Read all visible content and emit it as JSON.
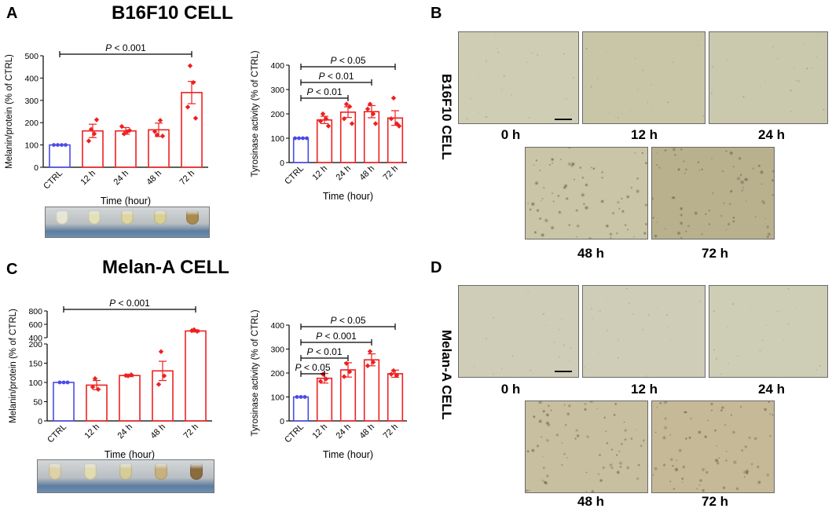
{
  "panels": {
    "A": {
      "letter": "A",
      "title": "B16F10 CELL",
      "melanin_tubes_colors": [
        "#e8e5d4",
        "#e2e0b8",
        "#ddd69f",
        "#d9d093",
        "#a88b4f"
      ]
    },
    "B": {
      "letter": "B",
      "vertical_label": "B16F10 CELL",
      "images": [
        {
          "label": "0 h",
          "tint": "#cfcdb4"
        },
        {
          "label": "12 h",
          "tint": "#c8c6a7"
        },
        {
          "label": "24 h",
          "tint": "#cac8ad"
        },
        {
          "label": "48 h",
          "tint": "#c9c5a6"
        },
        {
          "label": "72 h",
          "tint": "#b9b08e"
        }
      ]
    },
    "C": {
      "letter": "C",
      "title": "Melan-A CELL",
      "melanin_tubes_colors": [
        "#ddd2a8",
        "#e2dcb2",
        "#d6cc99",
        "#c9b17e",
        "#8a6c3f"
      ]
    },
    "D": {
      "letter": "D",
      "vertical_label": "Melan-A CELL",
      "images": [
        {
          "label": "0 h",
          "tint": "#cfcdb8"
        },
        {
          "label": "12 h",
          "tint": "#cfcdb8"
        },
        {
          "label": "24 h",
          "tint": "#cecdb6"
        },
        {
          "label": "48 h",
          "tint": "#c8bea0"
        },
        {
          "label": "72 h",
          "tint": "#c5b997"
        }
      ]
    }
  },
  "chart_data": [
    {
      "id": "A-melanin",
      "type": "bar",
      "categories": [
        "CTRL",
        "12 h",
        "24 h",
        "48 h",
        "72 h"
      ],
      "values": [
        100,
        163,
        163,
        168,
        335
      ],
      "errors": [
        0,
        30,
        15,
        30,
        50
      ],
      "points": [
        [
          100,
          100,
          100,
          100
        ],
        [
          170,
          150,
          118,
          213
        ],
        [
          150,
          160,
          183,
          165
        ],
        [
          145,
          210,
          160,
          140
        ],
        [
          455,
          380,
          270,
          220
        ]
      ],
      "bar_colors": [
        "#4a4ae6",
        "#ee2020",
        "#ee2020",
        "#ee2020",
        "#ee2020"
      ],
      "xlabel": "Time (hour)",
      "ylabel": "Melanin/protein (% of CTRL)",
      "yticks": [
        0,
        100,
        200,
        300,
        400,
        500
      ],
      "ylim": [
        0,
        500
      ],
      "significance": [
        {
          "text": "P < 0.001",
          "from": 0,
          "to": 4
        }
      ]
    },
    {
      "id": "A-tyrosinase",
      "type": "bar",
      "categories": [
        "CTRL",
        "12 h",
        "24 h",
        "48 h",
        "72 h"
      ],
      "values": [
        100,
        175,
        207,
        209,
        183
      ],
      "errors": [
        0,
        15,
        22,
        25,
        30
      ],
      "points": [
        [
          100,
          100,
          100,
          100
        ],
        [
          200,
          180,
          170,
          150
        ],
        [
          240,
          230,
          180,
          160
        ],
        [
          240,
          200,
          220,
          160
        ],
        [
          265,
          160,
          180,
          150
        ]
      ],
      "bar_colors": [
        "#4a4ae6",
        "#ee2020",
        "#ee2020",
        "#ee2020",
        "#ee2020"
      ],
      "xlabel": "Time (hour)",
      "ylabel": "Tyrosinase activity (% of CTRL)",
      "yticks": [
        0,
        100,
        200,
        300,
        400
      ],
      "ylim": [
        0,
        400
      ],
      "significance": [
        {
          "text": "P < 0.05",
          "from": 0,
          "to": 4
        },
        {
          "text": "P < 0.01",
          "from": 0,
          "to": 3
        },
        {
          "text": "P < 0.01",
          "from": 0,
          "to": 2
        }
      ]
    },
    {
      "id": "C-melanin",
      "type": "bar",
      "categories": [
        "CTRL",
        "12 h",
        "24 h",
        "48 h",
        "72 h"
      ],
      "values": [
        100,
        93,
        118,
        130,
        500
      ],
      "errors": [
        0,
        12,
        3,
        25,
        15
      ],
      "points": [
        [
          100,
          100,
          100
        ],
        [
          110,
          82,
          88
        ],
        [
          117,
          120,
          118
        ],
        [
          180,
          117,
          95
        ],
        [
          520,
          495,
          505
        ]
      ],
      "bar_colors": [
        "#4a4ae6",
        "#ee2020",
        "#ee2020",
        "#ee2020",
        "#ee2020"
      ],
      "xlabel": "Time (hour)",
      "ylabel": "Melanin/protein (% of CTRL)",
      "yticks": [
        0,
        50,
        100,
        150,
        200,
        400,
        600,
        800
      ],
      "axis_break": {
        "lower_range": [
          0,
          200
        ],
        "upper_range": [
          400,
          800
        ]
      },
      "significance": [
        {
          "text": "P < 0.001",
          "from": 0,
          "to": 4
        }
      ]
    },
    {
      "id": "C-tyrosinase",
      "type": "bar",
      "categories": [
        "CTRL",
        "12 h",
        "24 h",
        "48 h",
        "72 h"
      ],
      "values": [
        100,
        178,
        213,
        255,
        197
      ],
      "errors": [
        0,
        20,
        30,
        25,
        15
      ],
      "points": [
        [
          100,
          100,
          100
        ],
        [
          195,
          175,
          165
        ],
        [
          240,
          205,
          185
        ],
        [
          290,
          245,
          230
        ],
        [
          210,
          190,
          195
        ]
      ],
      "bar_colors": [
        "#4a4ae6",
        "#ee2020",
        "#ee2020",
        "#ee2020",
        "#ee2020"
      ],
      "xlabel": "Time (hour)",
      "ylabel": "Tyrosinase activity (% of CTRL)",
      "yticks": [
        0,
        100,
        200,
        300,
        400
      ],
      "ylim": [
        0,
        400
      ],
      "significance": [
        {
          "text": "P < 0.05",
          "from": 0,
          "to": 4
        },
        {
          "text": "P < 0.001",
          "from": 0,
          "to": 3
        },
        {
          "text": "P < 0.01",
          "from": 0,
          "to": 2
        },
        {
          "text": "P < 0.05",
          "from": 0,
          "to": 1
        }
      ]
    }
  ]
}
